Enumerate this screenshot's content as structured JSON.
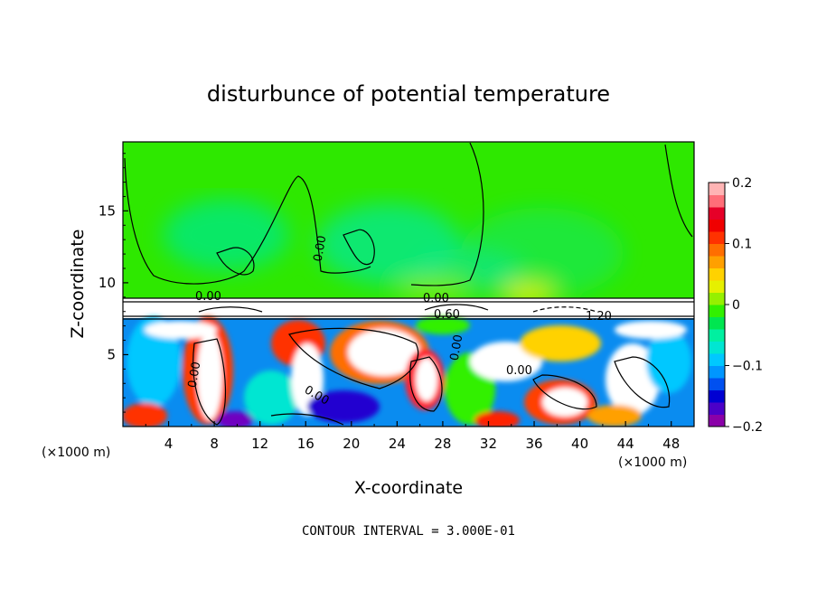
{
  "chart_data": {
    "type": "heatmap",
    "title": "disturbunce of potential temperature",
    "xlabel": "X-coordinate",
    "ylabel": "Z-coordinate",
    "x_unit": "(×1000 m)",
    "y_unit": "(×1000 m)",
    "xlim": [
      0,
      50
    ],
    "ylim": [
      0,
      19.8
    ],
    "x_ticks": [
      "4",
      "8",
      "12",
      "16",
      "20",
      "24",
      "28",
      "32",
      "36",
      "40",
      "44",
      "48"
    ],
    "y_ticks": [
      "5",
      "10",
      "15"
    ],
    "colorbar": {
      "range": [
        -0.2,
        0.2
      ],
      "tick_labels": [
        "0.2",
        "0.1",
        "0",
        "−0.1",
        "−0.2"
      ],
      "colors": [
        "#8a00a8",
        "#4b00c8",
        "#0000d2",
        "#0050f0",
        "#0096ff",
        "#00c8ff",
        "#00e6d2",
        "#00f0a0",
        "#00e650",
        "#32f000",
        "#96f000",
        "#e6f000",
        "#ffd200",
        "#ffa000",
        "#ff6e00",
        "#ff3200",
        "#f00000",
        "#e60028",
        "#ff6e78",
        "#ffb4b4"
      ]
    },
    "contour_labels": [
      "0.00",
      "0.00",
      "0.00",
      "0.60",
      "0.00",
      "0.00",
      "1.20",
      "0.00",
      "0.00"
    ],
    "footer": "CONTOUR INTERVAL = 3.000E-01"
  }
}
